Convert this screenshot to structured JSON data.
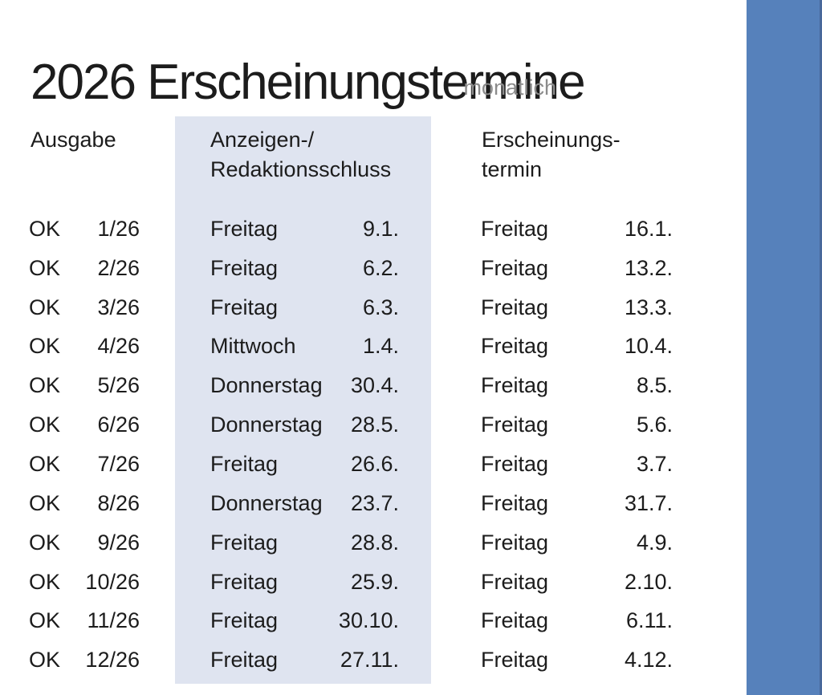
{
  "title": "2026 Erscheinungstermine",
  "subtitle": "monatlich",
  "colors": {
    "accent_bar": "#5681bb",
    "accent_bar_edge": "#49689b",
    "highlight_column_bg": "#dfe4f0",
    "text": "#1c1c1c",
    "subtitle_gray": "#8b8b8b"
  },
  "table": {
    "headers": {
      "issue": "Ausgabe",
      "deadline_line1": "Anzeigen-/",
      "deadline_line2": "Redaktionsschluss",
      "publication_line1": "Erscheinungs-",
      "publication_line2": "termin"
    },
    "rows": [
      {
        "status": "OK",
        "issue": "1/26",
        "deadline_day": "Freitag",
        "deadline_date": "9.1.",
        "pub_day": "Freitag",
        "pub_date": "16.1."
      },
      {
        "status": "OK",
        "issue": "2/26",
        "deadline_day": "Freitag",
        "deadline_date": "6.2.",
        "pub_day": "Freitag",
        "pub_date": "13.2."
      },
      {
        "status": "OK",
        "issue": "3/26",
        "deadline_day": "Freitag",
        "deadline_date": "6.3.",
        "pub_day": "Freitag",
        "pub_date": "13.3."
      },
      {
        "status": "OK",
        "issue": "4/26",
        "deadline_day": "Mittwoch",
        "deadline_date": "1.4.",
        "pub_day": "Freitag",
        "pub_date": "10.4."
      },
      {
        "status": "OK",
        "issue": "5/26",
        "deadline_day": "Donnerstag",
        "deadline_date": "30.4.",
        "pub_day": "Freitag",
        "pub_date": "8.5."
      },
      {
        "status": "OK",
        "issue": "6/26",
        "deadline_day": "Donnerstag",
        "deadline_date": "28.5.",
        "pub_day": "Freitag",
        "pub_date": "5.6."
      },
      {
        "status": "OK",
        "issue": "7/26",
        "deadline_day": "Freitag",
        "deadline_date": "26.6.",
        "pub_day": "Freitag",
        "pub_date": "3.7."
      },
      {
        "status": "OK",
        "issue": "8/26",
        "deadline_day": "Donnerstag",
        "deadline_date": "23.7.",
        "pub_day": "Freitag",
        "pub_date": "31.7."
      },
      {
        "status": "OK",
        "issue": "9/26",
        "deadline_day": "Freitag",
        "deadline_date": "28.8.",
        "pub_day": "Freitag",
        "pub_date": "4.9."
      },
      {
        "status": "OK",
        "issue": "10/26",
        "deadline_day": "Freitag",
        "deadline_date": "25.9.",
        "pub_day": "Freitag",
        "pub_date": "2.10."
      },
      {
        "status": "OK",
        "issue": "11/26",
        "deadline_day": "Freitag",
        "deadline_date": "30.10.",
        "pub_day": "Freitag",
        "pub_date": "6.11."
      },
      {
        "status": "OK",
        "issue": "12/26",
        "deadline_day": "Freitag",
        "deadline_date": "27.11.",
        "pub_day": "Freitag",
        "pub_date": "4.12."
      }
    ]
  }
}
